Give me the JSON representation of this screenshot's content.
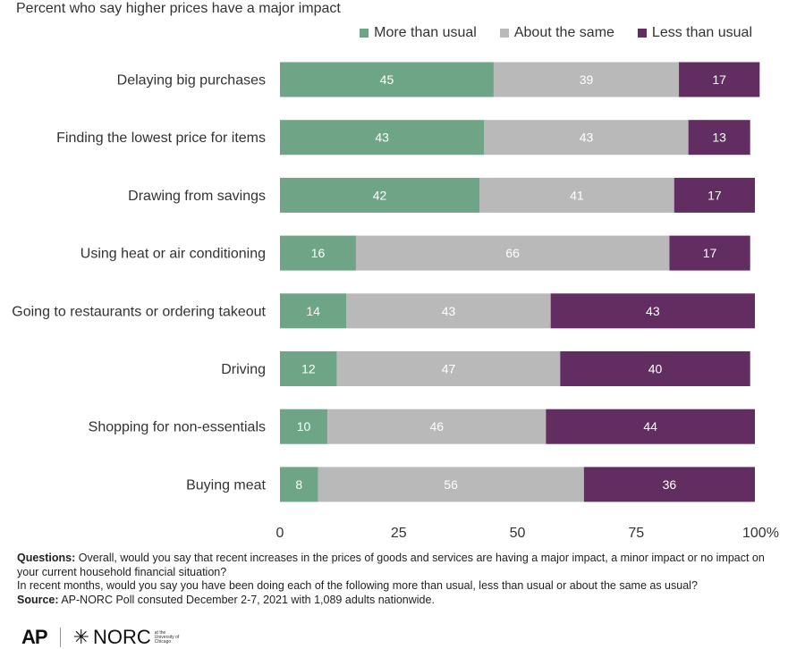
{
  "chart_data": {
    "type": "bar",
    "orientation": "horizontal",
    "stacked": true,
    "subtitle": "Percent who say higher prices have a major impact",
    "categories": [
      "Delaying big purchases",
      "Finding the lowest price for items",
      "Drawing from savings",
      "Using heat or air conditioning",
      "Going to restaurants or ordering takeout",
      "Driving",
      "Shopping for non-essentials",
      "Buying meat"
    ],
    "series": [
      {
        "name": "More than usual",
        "color": "#6fa587",
        "values": [
          45,
          43,
          42,
          16,
          14,
          12,
          10,
          8
        ]
      },
      {
        "name": "About the same",
        "color": "#b9b9b9",
        "values": [
          39,
          43,
          41,
          66,
          43,
          47,
          46,
          56
        ]
      },
      {
        "name": "Less than usual",
        "color": "#622d60",
        "values": [
          17,
          13,
          17,
          17,
          43,
          40,
          44,
          36
        ]
      }
    ],
    "xlim": [
      0,
      100
    ],
    "xticks": [
      0,
      25,
      50,
      75,
      100
    ],
    "xtick_labels": [
      "0",
      "25",
      "50",
      "75",
      "100%"
    ],
    "legend": "top-right",
    "grid": false
  },
  "notes": {
    "questions_label": "Questions:",
    "question1": "Overall, would you say that recent increases in the prices of goods and services are having a major impact, a minor impact or no impact on your current household financial situation?",
    "question2": "In recent months, would you say you have been doing each of the following more than usual, less than usual or about the same as usual?",
    "source_label": "Source:",
    "source_text": "AP-NORC Poll consuted December 2-7, 2021 with 1,089 adults nationwide."
  },
  "logos": {
    "ap": "AP",
    "norc": "NORC",
    "norc_small": "at the University of Chicago"
  }
}
